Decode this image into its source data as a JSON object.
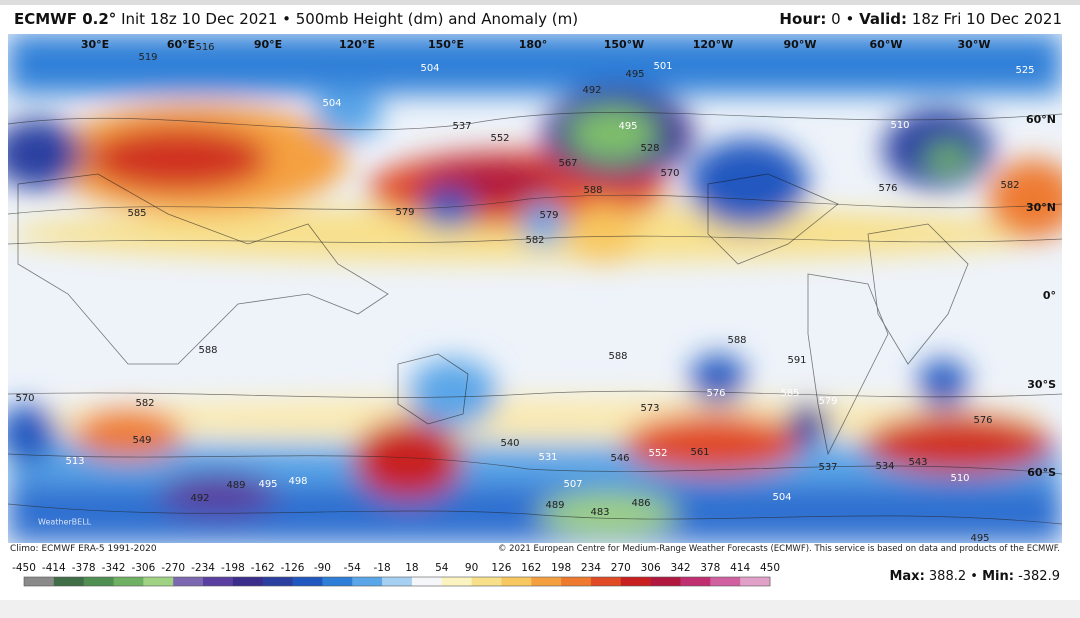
{
  "header": {
    "model": "ECMWF 0.2°",
    "subtitle": "Init 18z 10 Dec 2021 • 500mb Height (dm) and Anomaly (m)",
    "hour_label": "Hour:",
    "hour": "0",
    "separator": "•",
    "valid_label": "Valid:",
    "valid": "18z Fri 10 Dec 2021"
  },
  "map": {
    "longitude_labels": [
      "30°E",
      "60°E",
      "90°E",
      "120°E",
      "150°E",
      "180°",
      "150°W",
      "120°W",
      "90°W",
      "60°W",
      "30°W"
    ],
    "latitude_labels": [
      "60°N",
      "30°N",
      "0°",
      "30°S",
      "60°S"
    ],
    "contour_labels": [
      "504",
      "516",
      "519",
      "504",
      "495",
      "501",
      "492",
      "495",
      "528",
      "567",
      "588",
      "570",
      "552",
      "537",
      "510",
      "525",
      "576",
      "582",
      "579",
      "582",
      "579",
      "585",
      "588",
      "588",
      "588",
      "591",
      "585",
      "576",
      "573",
      "582",
      "579",
      "561",
      "552",
      "546",
      "537",
      "534",
      "543",
      "549",
      "513",
      "498",
      "495",
      "489",
      "492",
      "483",
      "486",
      "489",
      "507",
      "504",
      "531",
      "540",
      "576",
      "570",
      "510",
      "495"
    ],
    "watermark": "WeatherBELL"
  },
  "footer": {
    "climo": "Climo: ECMWF ERA-5 1991-2020",
    "copyright": "© 2021 European Centre for Medium-Range Weather Forecasts (ECMWF). This service is based on data and products of the ECMWF."
  },
  "colorbar": {
    "ticks": [
      -450,
      -414,
      -378,
      -342,
      -306,
      -270,
      -234,
      -198,
      -162,
      -126,
      -90,
      -54,
      -18,
      18,
      54,
      90,
      126,
      162,
      198,
      234,
      270,
      306,
      342,
      378,
      414,
      450
    ],
    "colors": [
      "#8a8a8a",
      "#3f6e47",
      "#4f8f52",
      "#6fb063",
      "#9fd283",
      "#7b68b0",
      "#5a3fa0",
      "#3b2d8c",
      "#2b3fa0",
      "#2058c0",
      "#2f7fd8",
      "#5aa6e8",
      "#a6d0f2",
      "#f4f6fa",
      "#fbf3c0",
      "#f8e08a",
      "#f8c860",
      "#f5a040",
      "#ee7a30",
      "#e04a25",
      "#c82020",
      "#b01840",
      "#c03070",
      "#d060a0",
      "#e0a0c8"
    ]
  },
  "stats": {
    "max_label": "Max:",
    "max": 388.2,
    "min_label": "Min:",
    "min": -382.9
  }
}
